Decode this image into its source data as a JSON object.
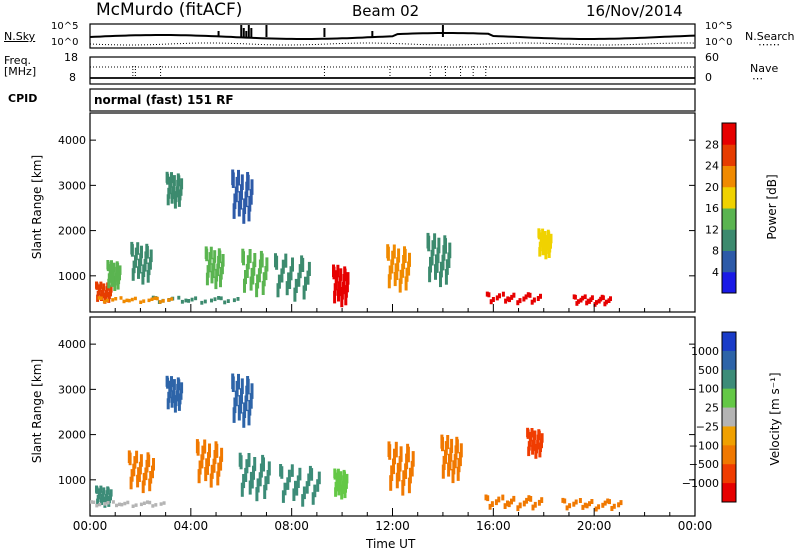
{
  "header": {
    "station": "McMurdo (fitACF)",
    "beam": "Beam 02",
    "date": "16/Nov/2014"
  },
  "status_panel": {
    "left_label_top": "N.Sky",
    "right_label_top": "N.Search",
    "sky_scale_top": "10^5",
    "sky_scale_bottom": "10^0",
    "left_label_freq_1": "Freq.",
    "left_label_freq_2": "[MHz]",
    "freq_max": "18",
    "freq_min": "8",
    "nave_max": "60",
    "nave_min": "0",
    "right_label_nave": "Nave",
    "cpid_label": "CPID",
    "cpid_value": "normal (fast) 151 RF"
  },
  "chart_data": [
    {
      "type": "heatmap",
      "name": "power",
      "ylabel": "Slant Range [km]",
      "ylim": [
        200,
        4600
      ],
      "yticks": [
        "1000",
        "2000",
        "3000",
        "4000"
      ],
      "ytick_values": [
        1000,
        2000,
        3000,
        4000
      ],
      "xlabel": "Time UT",
      "xticks": [
        "00:00",
        "04:00",
        "08:00",
        "12:00",
        "16:00",
        "20:00",
        "00:00"
      ],
      "xtick_hours": [
        0,
        4,
        8,
        12,
        16,
        20,
        24
      ],
      "colorbar_label": "Power [dB]",
      "colorbar_ticks": [
        "4",
        "8",
        "12",
        "16",
        "20",
        "24",
        "28"
      ],
      "colorbar_colors": [
        "#1a1ae6",
        "#2d5aa8",
        "#3c8a6e",
        "#5ab450",
        "#f0d200",
        "#f08a00",
        "#e63c00",
        "#e60000"
      ],
      "scatter_blobs": [
        {
          "t": 0.5,
          "r": 700,
          "w": 0.6,
          "h": 350,
          "level": 6
        },
        {
          "t": 0.9,
          "r": 1100,
          "w": 0.5,
          "h": 500,
          "level": 3
        },
        {
          "t": 2.0,
          "r": 1400,
          "w": 0.8,
          "h": 700,
          "level": 2
        },
        {
          "t": 3.3,
          "r": 3000,
          "w": 0.6,
          "h": 600,
          "level": 2
        },
        {
          "t": 4.9,
          "r": 1300,
          "w": 0.7,
          "h": 700,
          "level": 3
        },
        {
          "t": 6.0,
          "r": 2900,
          "w": 0.8,
          "h": 900,
          "level": 1
        },
        {
          "t": 6.5,
          "r": 1200,
          "w": 1.0,
          "h": 800,
          "level": 3
        },
        {
          "t": 8.0,
          "r": 1100,
          "w": 1.4,
          "h": 800,
          "level": 2
        },
        {
          "t": 9.9,
          "r": 900,
          "w": 0.6,
          "h": 700,
          "level": 7
        },
        {
          "t": 12.2,
          "r": 1300,
          "w": 0.9,
          "h": 800,
          "level": 5
        },
        {
          "t": 13.8,
          "r": 1500,
          "w": 0.9,
          "h": 900,
          "level": 2
        },
        {
          "t": 16.8,
          "r": 550,
          "w": 2.2,
          "h": 200,
          "level": 7
        },
        {
          "t": 19.9,
          "r": 500,
          "w": 1.5,
          "h": 180,
          "level": 7
        },
        {
          "t": 18.0,
          "r": 1800,
          "w": 0.5,
          "h": 500,
          "level": 4
        },
        {
          "t": 4.2,
          "r": 500,
          "w": 3.5,
          "h": 120,
          "level": 2
        },
        {
          "t": 1.8,
          "r": 500,
          "w": 3.0,
          "h": 100,
          "level": 5
        }
      ]
    },
    {
      "type": "heatmap",
      "name": "velocity",
      "ylabel": "Slant Range [km]",
      "ylim": [
        200,
        4600
      ],
      "yticks": [
        "1000",
        "2000",
        "3000",
        "4000"
      ],
      "ytick_values": [
        1000,
        2000,
        3000,
        4000
      ],
      "xlabel": "Time UT",
      "xticks": [
        "00:00",
        "04:00",
        "08:00",
        "12:00",
        "16:00",
        "20:00",
        "00:00"
      ],
      "xtick_hours": [
        0,
        4,
        8,
        12,
        16,
        20,
        24
      ],
      "colorbar_label": "Velocity [m s⁻¹]",
      "colorbar_ticks": [
        "1000",
        "500",
        "100",
        "25",
        "−25",
        "−100",
        "−500",
        "−1000"
      ],
      "colorbar_colors": [
        "#1a3cc8",
        "#2d64a8",
        "#3c8c78",
        "#64c846",
        "#b4b4b4",
        "#f0a000",
        "#f07800",
        "#f03c00",
        "#e60000"
      ],
      "scatter_blobs": [
        {
          "t": 0.5,
          "r": 700,
          "w": 0.6,
          "h": 350,
          "level": 2
        },
        {
          "t": 1.5,
          "r": 500,
          "w": 3.0,
          "h": 100,
          "level": 4
        },
        {
          "t": 3.3,
          "r": 3000,
          "w": 0.6,
          "h": 600,
          "level": 1
        },
        {
          "t": 6.0,
          "r": 2900,
          "w": 0.8,
          "h": 900,
          "level": 1
        },
        {
          "t": 6.5,
          "r": 1200,
          "w": 1.2,
          "h": 800,
          "level": 2
        },
        {
          "t": 8.3,
          "r": 1000,
          "w": 1.6,
          "h": 700,
          "level": 2
        },
        {
          "t": 2.0,
          "r": 1300,
          "w": 1.0,
          "h": 700,
          "level": 6
        },
        {
          "t": 4.7,
          "r": 1500,
          "w": 1.0,
          "h": 800,
          "level": 6
        },
        {
          "t": 12.3,
          "r": 1400,
          "w": 1.0,
          "h": 900,
          "level": 6
        },
        {
          "t": 14.3,
          "r": 1600,
          "w": 0.8,
          "h": 800,
          "level": 6
        },
        {
          "t": 16.8,
          "r": 550,
          "w": 2.3,
          "h": 250,
          "level": 6
        },
        {
          "t": 19.9,
          "r": 500,
          "w": 2.4,
          "h": 200,
          "level": 6
        },
        {
          "t": 17.6,
          "r": 1900,
          "w": 0.6,
          "h": 500,
          "level": 7
        },
        {
          "t": 9.9,
          "r": 1000,
          "w": 0.5,
          "h": 500,
          "level": 3
        }
      ]
    }
  ]
}
